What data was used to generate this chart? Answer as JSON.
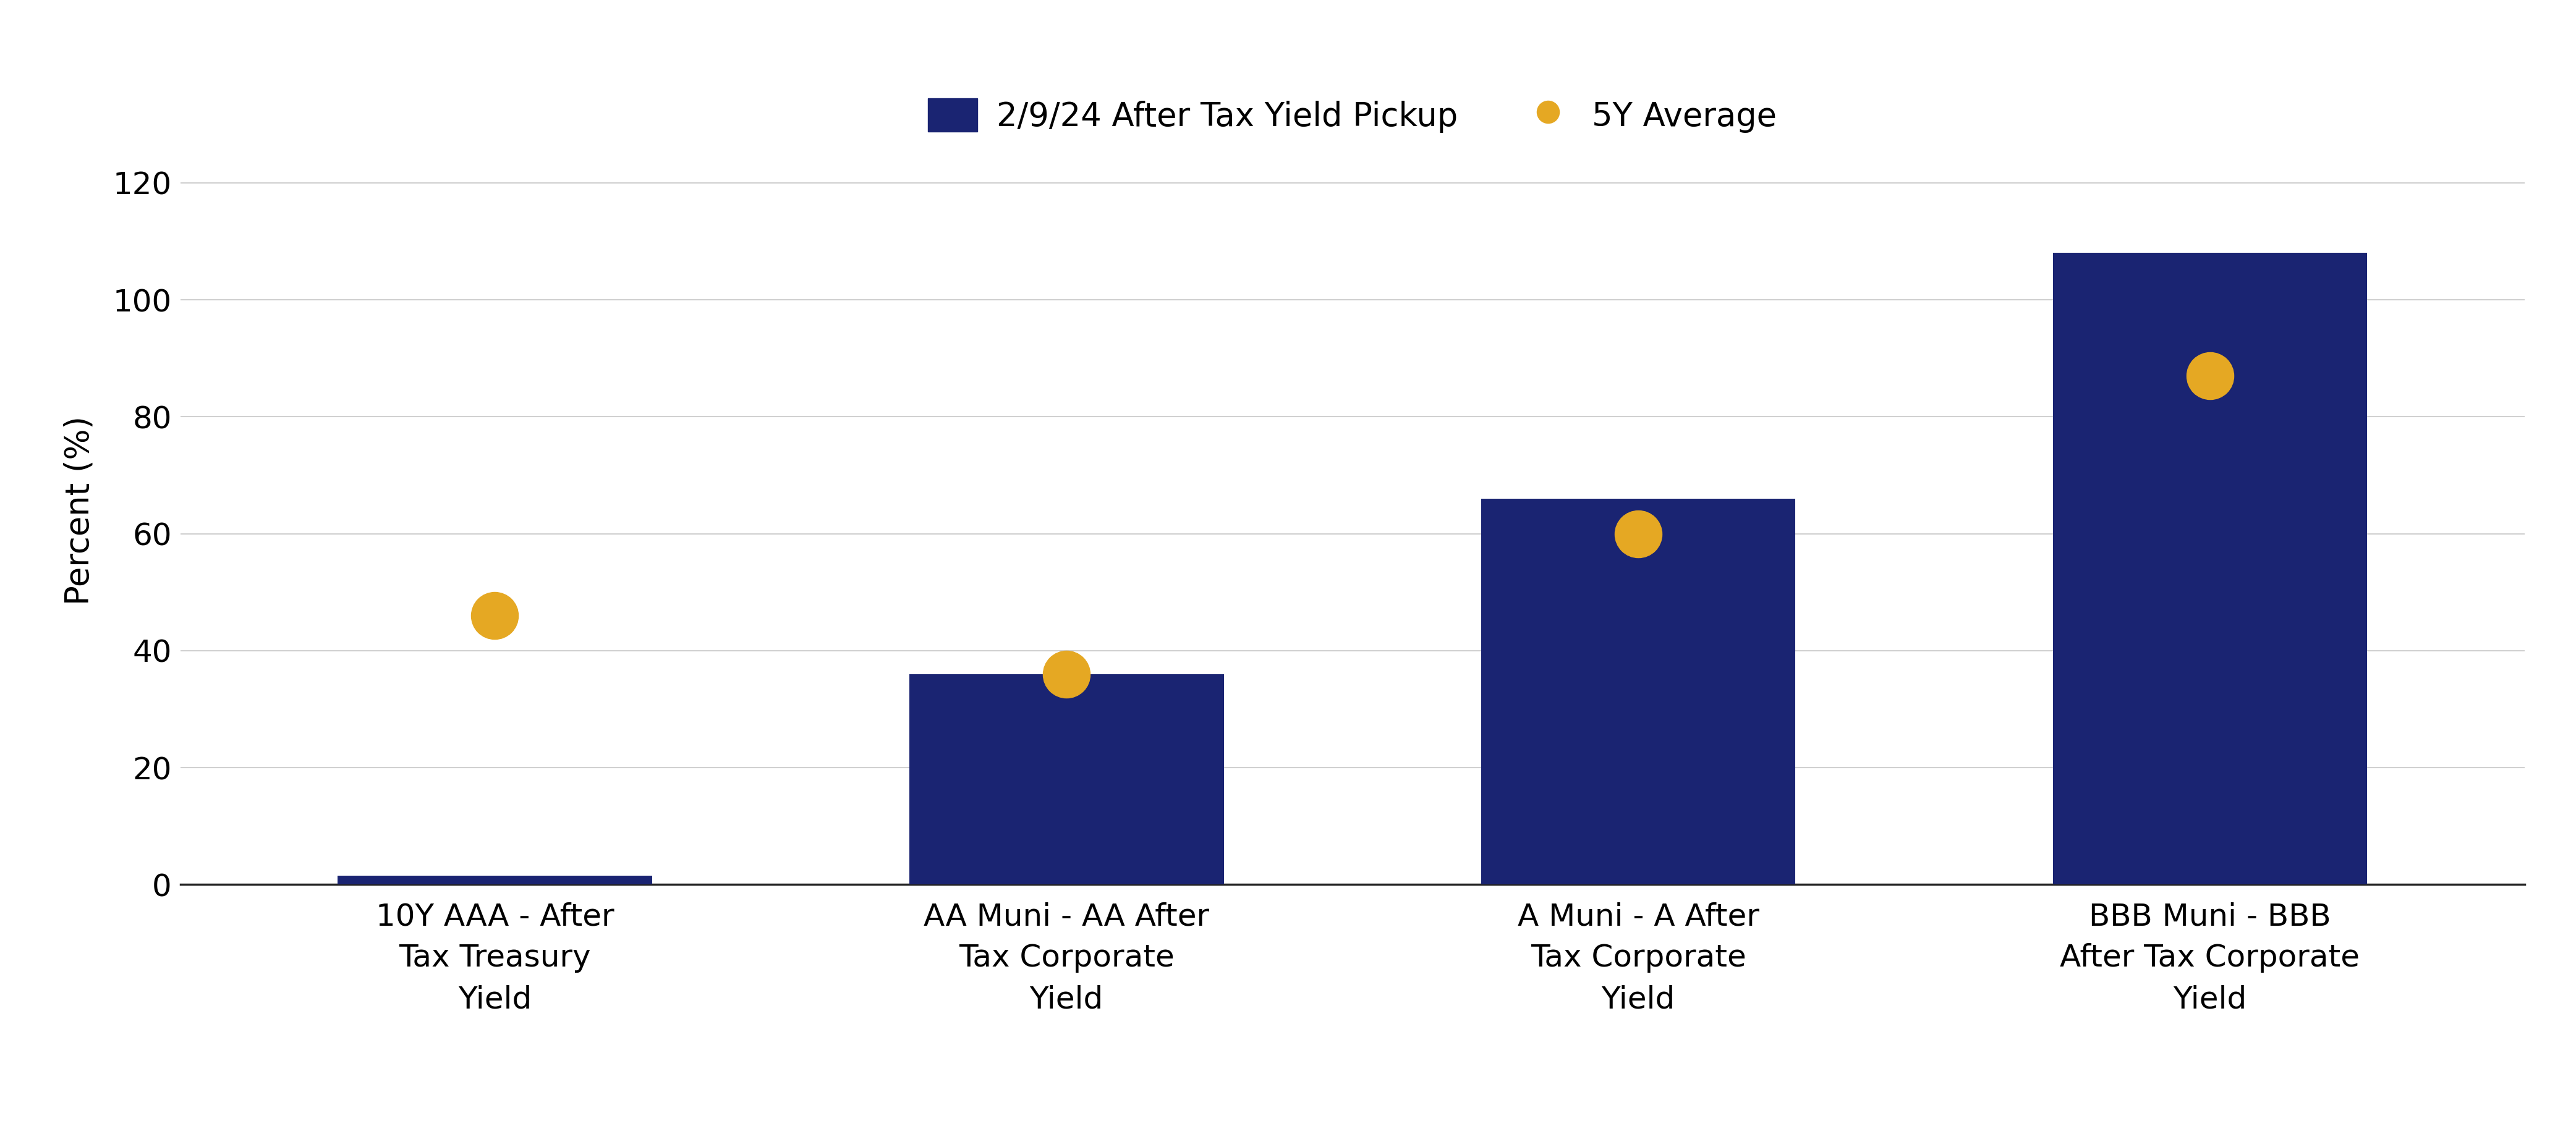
{
  "categories": [
    "10Y AAA - After\nTax Treasury\nYield",
    "AA Muni - AA After\nTax Corporate\nYield",
    "A Muni - A After\nTax Corporate\nYield",
    "BBB Muni - BBB\nAfter Tax Corporate\nYield"
  ],
  "bar_values": [
    1.5,
    36,
    66,
    108
  ],
  "dot_values": [
    46,
    36,
    60,
    87
  ],
  "bar_color": "#1a2472",
  "dot_color": "#e5a823",
  "ylim": [
    0,
    128
  ],
  "yticks": [
    0,
    20,
    40,
    60,
    80,
    100,
    120
  ],
  "ylabel": "Percent (%)",
  "legend_bar_label": "2/9/24 After Tax Yield Pickup",
  "legend_dot_label": "5Y Average",
  "bg_color": "#ffffff",
  "grid_color": "#d0d0d0",
  "axis_fontsize": 38,
  "tick_fontsize": 36,
  "legend_fontsize": 38,
  "bar_width": 0.55,
  "dot_size": 3000,
  "xlim_left": -0.55,
  "xlim_right": 3.55
}
